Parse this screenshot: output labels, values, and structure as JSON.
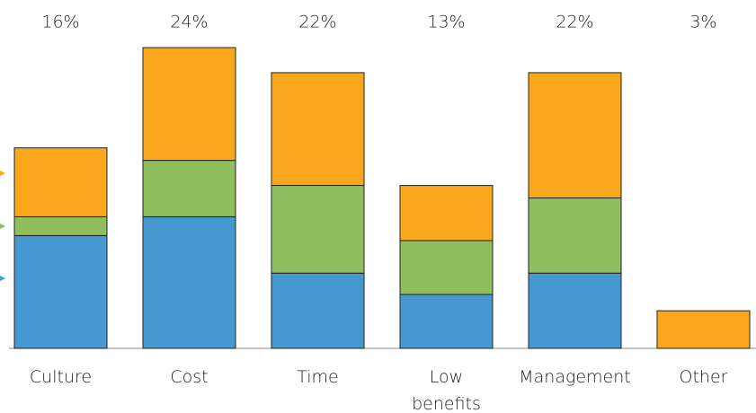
{
  "chart_data": {
    "type": "stacked_bar",
    "categories": [
      "Culture",
      "Cost",
      "Time",
      "Low\nbenefits",
      "Management",
      "Other"
    ],
    "totals": [
      16,
      24,
      22,
      13,
      22,
      3
    ],
    "total_labels": [
      "16%",
      "24%",
      "22%",
      "13%",
      "22%",
      "3%"
    ],
    "series": [
      {
        "color": "#4599d0",
        "values": [
          9,
          10.5,
          6,
          4.3,
          6,
          0
        ]
      },
      {
        "color": "#8fbe5c",
        "values": [
          1.5,
          4.5,
          7,
          4.3,
          6,
          0
        ]
      },
      {
        "color": "#f9a71c",
        "values": [
          5.5,
          9,
          9,
          4.4,
          10,
          3
        ]
      }
    ]
  }
}
